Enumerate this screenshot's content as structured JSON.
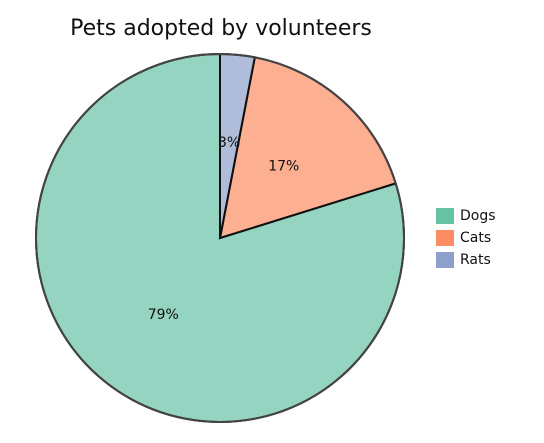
{
  "chart_data": {
    "type": "pie",
    "title": "Pets adopted by volunteers",
    "slices": [
      {
        "label": "Dogs",
        "value": 79,
        "display": "79%",
        "color": "#66c2a5"
      },
      {
        "label": "Cats",
        "value": 17,
        "display": "17%",
        "color": "#fc8d62"
      },
      {
        "label": "Rats",
        "value": 3,
        "display": "3%",
        "color": "#8da0cb"
      }
    ],
    "legend_position": "right"
  }
}
